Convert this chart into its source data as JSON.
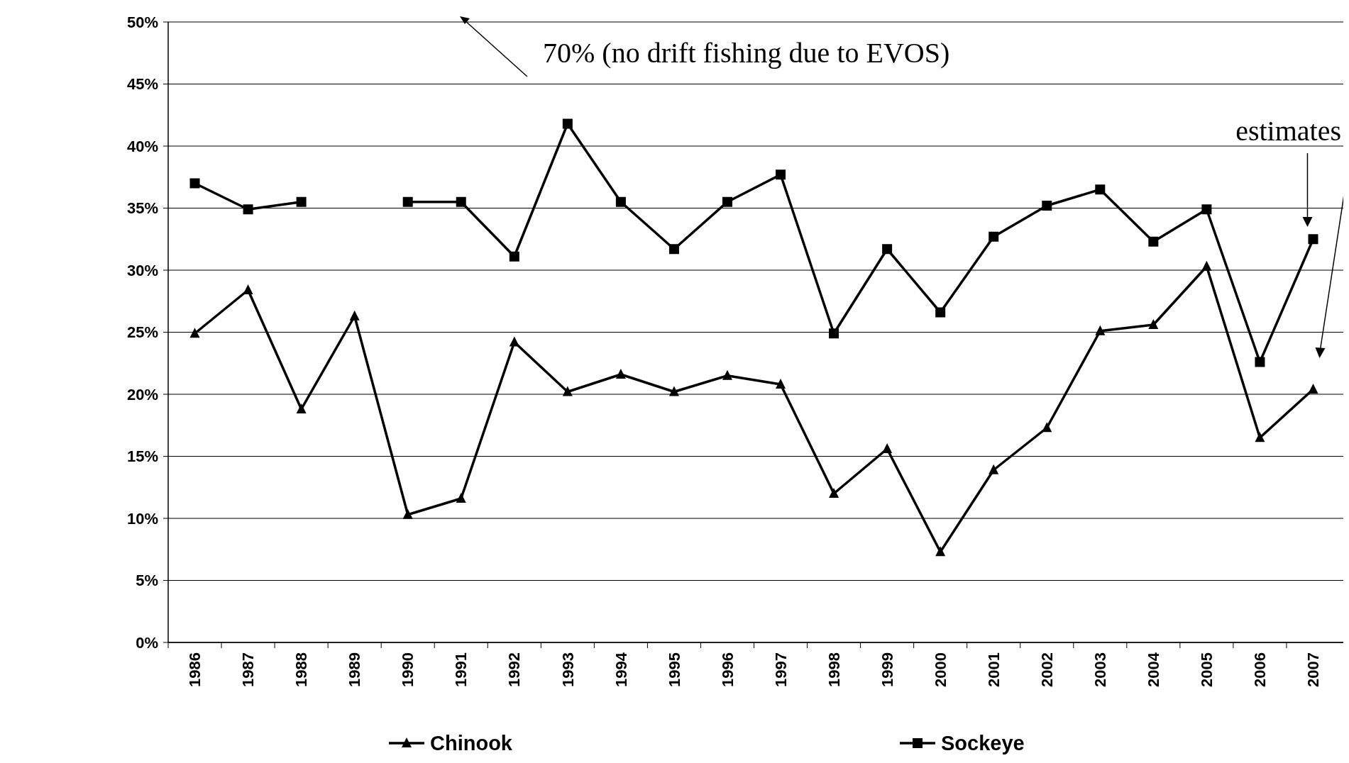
{
  "chart_data": {
    "type": "line",
    "categories": [
      "1986",
      "1987",
      "1988",
      "1989",
      "1990",
      "1991",
      "1992",
      "1993",
      "1994",
      "1995",
      "1996",
      "1997",
      "1998",
      "1999",
      "2000",
      "2001",
      "2002",
      "2003",
      "2004",
      "2005",
      "2006",
      "2007"
    ],
    "series": [
      {
        "name": "Chinook",
        "color": "#000000",
        "marker": "triangle",
        "values": [
          24.9,
          28.4,
          18.8,
          26.3,
          10.3,
          11.6,
          24.2,
          20.2,
          21.6,
          20.2,
          21.5,
          20.8,
          12.0,
          15.6,
          7.3,
          13.9,
          17.3,
          25.1,
          25.6,
          30.3,
          16.5,
          20.4
        ]
      },
      {
        "name": "Sockeye",
        "color": "#000000",
        "marker": "square",
        "values": [
          37.0,
          34.9,
          35.5,
          null,
          35.5,
          35.5,
          31.1,
          41.8,
          35.5,
          31.7,
          35.5,
          37.7,
          24.9,
          31.7,
          26.6,
          32.7,
          35.2,
          36.5,
          32.3,
          34.9,
          22.6,
          32.5
        ]
      }
    ],
    "ylim": [
      0,
      50
    ],
    "yticks": [
      {
        "value": 0,
        "label": "0%"
      },
      {
        "value": 5,
        "label": "5%"
      },
      {
        "value": 10,
        "label": "10%"
      },
      {
        "value": 15,
        "label": "15%"
      },
      {
        "value": 20,
        "label": "20%"
      },
      {
        "value": 25,
        "label": "25%"
      },
      {
        "value": 30,
        "label": "30%"
      },
      {
        "value": 35,
        "label": "35%"
      },
      {
        "value": 40,
        "label": "40%"
      },
      {
        "value": 45,
        "label": "45%"
      },
      {
        "value": 50,
        "label": "50%"
      }
    ],
    "grid": "y",
    "legend": "bottom",
    "line_style": "solid",
    "annotations": [
      "70% (no drift fishing due to EVOS)",
      "estimates"
    ]
  }
}
